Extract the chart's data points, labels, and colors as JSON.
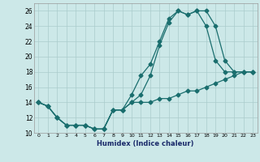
{
  "xlabel": "Humidex (Indice chaleur)",
  "bg_color": "#cce8e8",
  "grid_color": "#aacccc",
  "line_color": "#1a6e6e",
  "xlim": [
    -0.5,
    23.5
  ],
  "ylim": [
    10,
    27
  ],
  "xticks": [
    0,
    1,
    2,
    3,
    4,
    5,
    6,
    7,
    8,
    9,
    10,
    11,
    12,
    13,
    14,
    15,
    16,
    17,
    18,
    19,
    20,
    21,
    22,
    23
  ],
  "yticks": [
    10,
    12,
    14,
    16,
    18,
    20,
    22,
    24,
    26
  ],
  "line1_x": [
    0,
    1,
    2,
    3,
    4,
    5,
    6,
    7,
    8,
    9,
    10,
    11,
    12,
    13,
    14,
    15,
    16,
    17,
    18,
    19,
    20,
    21,
    22,
    23
  ],
  "line1_y": [
    14,
    13.5,
    12,
    11,
    11,
    11,
    10.5,
    10.5,
    13,
    13,
    14,
    14,
    14,
    14.5,
    14.5,
    15,
    15.5,
    15.5,
    16,
    16.5,
    17,
    17.5,
    18,
    18
  ],
  "line2_x": [
    0,
    1,
    2,
    3,
    4,
    5,
    6,
    7,
    8,
    9,
    10,
    11,
    12,
    13,
    14,
    15,
    16,
    17,
    18,
    19,
    20,
    21,
    22,
    23
  ],
  "line2_y": [
    14,
    13.5,
    12,
    11,
    11,
    11,
    10.5,
    10.5,
    13,
    13,
    15,
    17.5,
    19,
    22,
    25,
    26,
    25.5,
    26,
    24,
    19.5,
    18,
    18,
    18,
    18
  ],
  "line3_x": [
    0,
    1,
    2,
    3,
    4,
    5,
    6,
    7,
    8,
    9,
    10,
    11,
    12,
    13,
    14,
    15,
    16,
    17,
    18,
    19,
    20,
    21,
    22,
    23
  ],
  "line3_y": [
    14,
    13.5,
    12,
    11,
    11,
    11,
    10.5,
    10.5,
    13,
    13,
    14,
    15,
    17.5,
    21.5,
    24.5,
    26,
    25.5,
    26,
    26,
    24,
    19.5,
    18,
    18,
    18
  ]
}
